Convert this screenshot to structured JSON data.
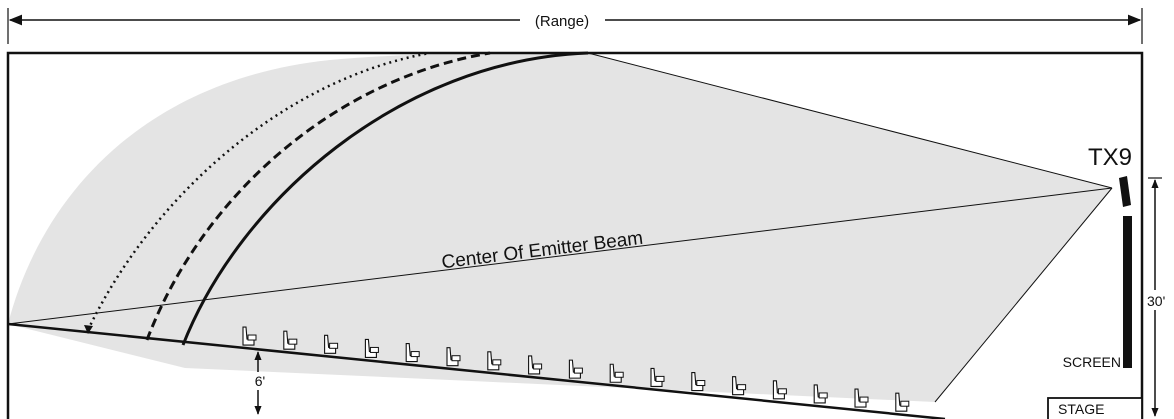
{
  "diagram": {
    "range_label": "(Range)",
    "beam_label": "Center Of Emitter Beam",
    "emitter_label": "TX9",
    "screen_label": "SCREEN",
    "stage_label": "STAGE",
    "height_label": "30'",
    "seat_height_label": "6'",
    "seat_count": 17,
    "colors": {
      "coverage_fill": "#e4e4e4",
      "line": "#111111",
      "background": "#ffffff"
    }
  }
}
